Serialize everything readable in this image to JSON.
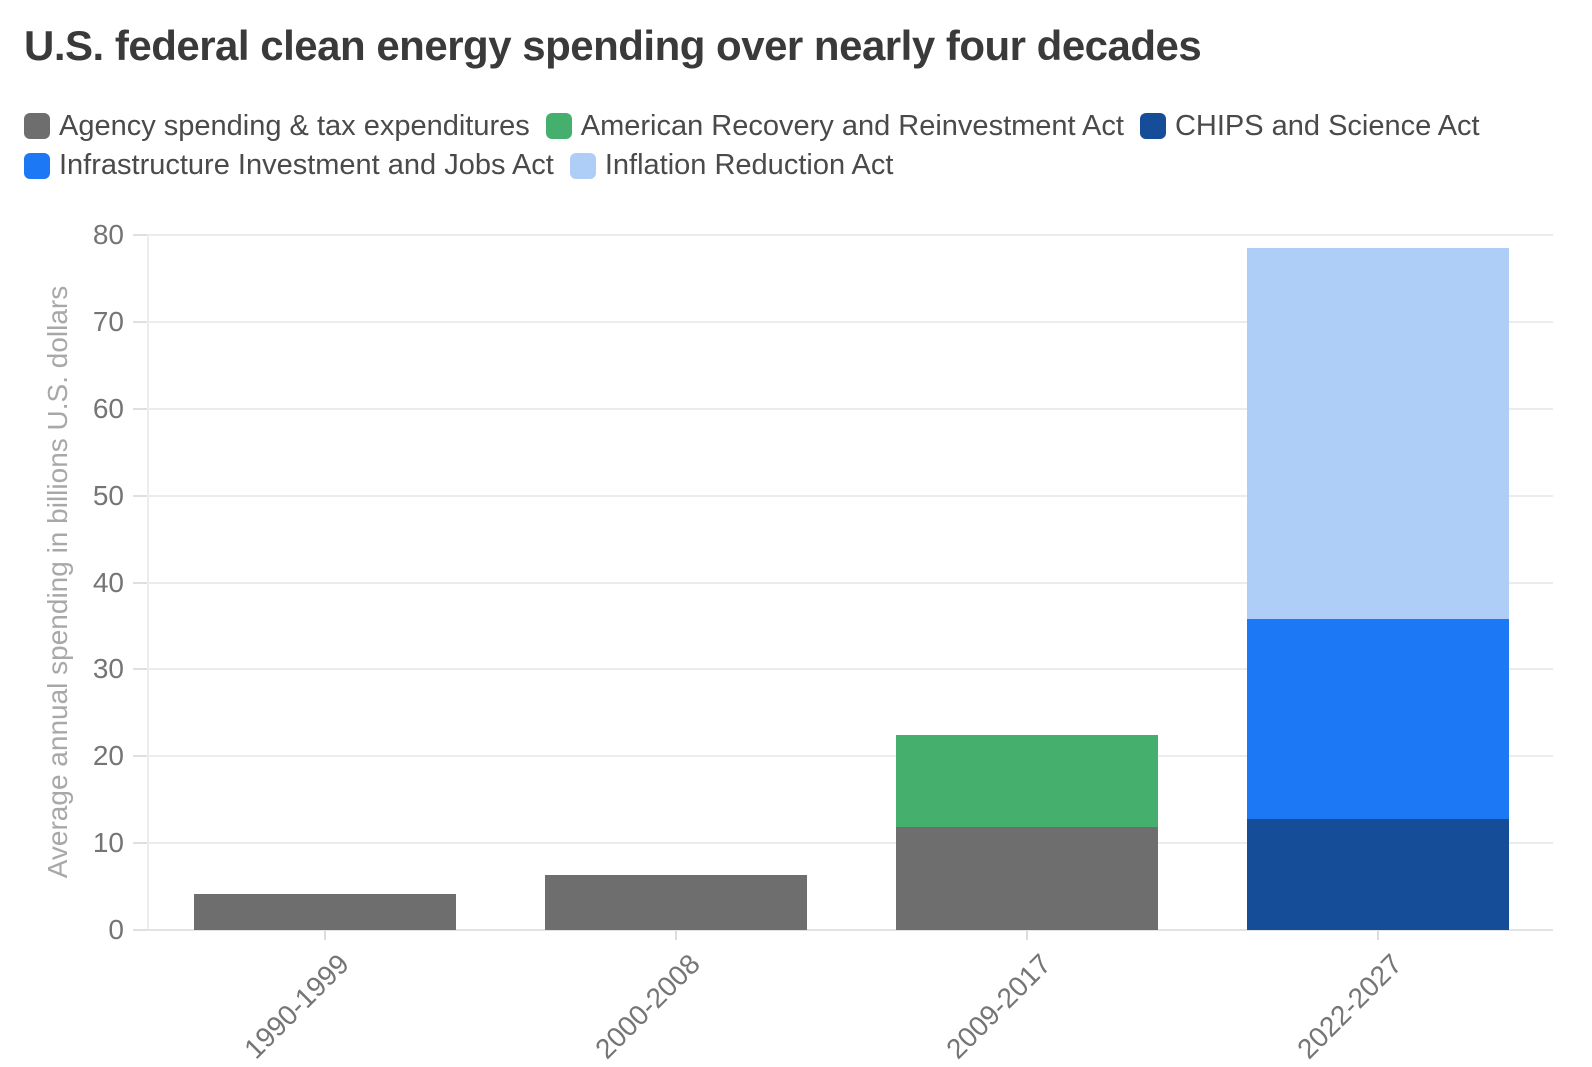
{
  "chart_data": {
    "type": "bar",
    "stacked": true,
    "title": "U.S. federal clean energy spending over nearly four decades",
    "ylabel": "Average annual spending in billions U.S. dollars",
    "xlabel": "",
    "categories": [
      "1990-1999",
      "2000-2008",
      "2009-2017",
      "2022-2027"
    ],
    "series": [
      {
        "name": "Agency spending & tax expenditures",
        "color": "#6e6e6e",
        "values": [
          4.2,
          6.3,
          11.8,
          0
        ]
      },
      {
        "name": "American Recovery and Reinvestment Act",
        "color": "#45b06e",
        "values": [
          0,
          0,
          10.6,
          0
        ]
      },
      {
        "name": "CHIPS and Science Act",
        "color": "#164d98",
        "values": [
          0,
          0,
          0,
          12.8
        ]
      },
      {
        "name": "Infrastructure Investment and Jobs Act",
        "color": "#1d78f5",
        "values": [
          0,
          0,
          0,
          23.0
        ]
      },
      {
        "name": "Inflation Reduction Act",
        "color": "#aecdf7",
        "values": [
          0,
          0,
          0,
          42.7
        ]
      }
    ],
    "stack_totals": [
      4.2,
      6.3,
      22.4,
      78.5
    ],
    "ylim": [
      0,
      80
    ],
    "yticks": [
      0,
      10,
      20,
      30,
      40,
      50,
      60,
      70,
      80
    ],
    "grid": true,
    "legend_position": "top"
  },
  "colors": {
    "title_text": "#3a3a3a",
    "legend_text": "#4a4a4a",
    "axis_tick_text": "#757575",
    "y_axis_title_text": "#a8a8a8",
    "gridline": "#ececec",
    "background": "#ffffff"
  }
}
